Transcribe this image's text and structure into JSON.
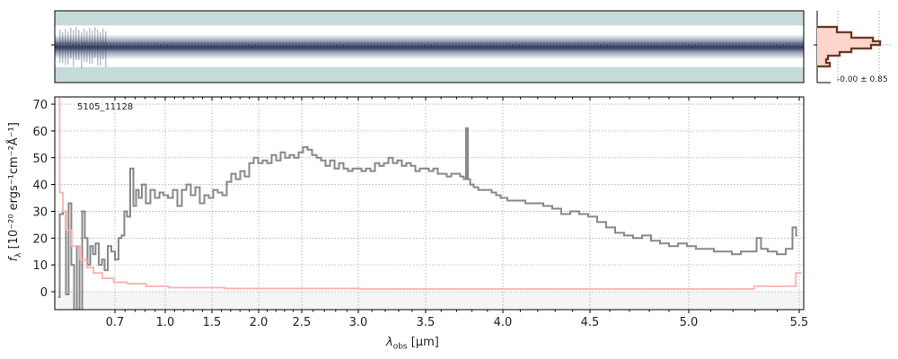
{
  "chart_data": {
    "type": "line",
    "object_label": "5105_11128",
    "xlabel_symbol": "λ",
    "xlabel_sub": "obs",
    "xlabel_unit": " [μm]",
    "ylabel_main": "f",
    "ylabel_sub": "λ",
    "ylabel_unit": " [10⁻²⁰ ergs⁻¹cm⁻²Å⁻¹]",
    "xticks": [
      0.7,
      1.0,
      1.5,
      2.0,
      2.5,
      3.0,
      3.5,
      4.0,
      4.5,
      5.0,
      5.5
    ],
    "xtick_labels": [
      "0.7",
      "1.0",
      "1.5",
      "2.0",
      "2.5",
      "3.0",
      "3.5",
      "4.0",
      "4.5",
      "5.0",
      "5.5"
    ],
    "xlim": [
      0.34,
      5.52
    ],
    "yticks": [
      0,
      10,
      20,
      30,
      40,
      50,
      60,
      70
    ],
    "ytick_labels": [
      "0",
      "10",
      "20",
      "30",
      "40",
      "50",
      "60",
      "70"
    ],
    "ylim": [
      -6.7,
      72.7
    ],
    "grid": true,
    "hist_label": "-0.00 ± 0.85",
    "series": [
      {
        "name": "flux",
        "color": "#888888",
        "x": [
          0.361,
          0.378,
          0.399,
          0.415,
          0.431,
          0.447,
          0.464,
          0.48,
          0.496,
          0.512,
          0.528,
          0.544,
          0.56,
          0.576,
          0.592,
          0.614,
          0.63,
          0.646,
          0.668,
          0.689,
          0.711,
          0.732,
          0.748,
          0.764,
          0.78,
          0.802,
          0.818,
          0.834,
          0.85,
          0.871,
          0.898,
          0.925,
          0.952,
          0.979,
          1.0,
          1.058,
          1.106,
          1.154,
          1.202,
          1.25,
          1.298,
          1.346,
          1.394,
          1.442,
          1.49,
          1.538,
          1.587,
          1.635,
          1.683,
          1.731,
          1.779,
          1.827,
          1.875,
          1.923,
          1.971,
          2.021,
          2.073,
          2.125,
          2.177,
          2.229,
          2.281,
          2.333,
          2.385,
          2.438,
          2.49,
          2.532,
          2.571,
          2.611,
          2.651,
          2.69,
          2.73,
          2.77,
          2.81,
          2.849,
          2.889,
          2.929,
          2.968,
          3.007,
          3.04,
          3.073,
          3.107,
          3.14,
          3.173,
          3.207,
          3.24,
          3.273,
          3.307,
          3.34,
          3.373,
          3.407,
          3.44,
          3.473,
          3.506,
          3.535,
          3.564,
          3.593,
          3.622,
          3.651,
          3.68,
          3.709,
          3.738,
          3.756,
          3.767,
          3.779,
          3.797,
          3.826,
          3.855,
          3.884,
          3.913,
          3.942,
          3.971,
          4.0,
          4.052,
          4.103,
          4.155,
          4.206,
          4.258,
          4.309,
          4.361,
          4.412,
          4.464,
          4.514,
          4.559,
          4.605,
          4.65,
          4.695,
          4.741,
          4.786,
          4.832,
          4.877,
          4.923,
          4.968,
          5.012,
          5.053,
          5.093,
          5.134,
          5.175,
          5.215,
          5.256,
          5.297,
          5.317,
          5.337,
          5.378,
          5.419,
          5.459,
          5.48,
          5.492
        ],
        "y": [
          -2,
          29,
          30,
          -1,
          33,
          10,
          -10,
          17,
          -10,
          30,
          20,
          10,
          17,
          14,
          18,
          10,
          12,
          8,
          17,
          15,
          12,
          20,
          21,
          30,
          28,
          46,
          32,
          38,
          35,
          40,
          33,
          38,
          35,
          37,
          36,
          35,
          38,
          32,
          38,
          40,
          36,
          39,
          33,
          36,
          35,
          38,
          37,
          36,
          41,
          44,
          42,
          45,
          43,
          48,
          50,
          48,
          49,
          48,
          51,
          49,
          52,
          50,
          51,
          50,
          52,
          54,
          53,
          51,
          50,
          49,
          47,
          49,
          46,
          48,
          46,
          45,
          46,
          46,
          45,
          46,
          45,
          48,
          47,
          48,
          50,
          48,
          49,
          47,
          48,
          47,
          45,
          46,
          46,
          45,
          46,
          44,
          44,
          43,
          44,
          44,
          43,
          42,
          61,
          42,
          40,
          39,
          38,
          38,
          38,
          37,
          36,
          35,
          34,
          34,
          33,
          33,
          32,
          31,
          29,
          30,
          29,
          28,
          26,
          24,
          22,
          21,
          20,
          21,
          19,
          18,
          17,
          18,
          17,
          16,
          16,
          15,
          15,
          14,
          15,
          15,
          20,
          16,
          15,
          14,
          16,
          24,
          21
        ]
      },
      {
        "name": "error",
        "color": "#ffb0b0",
        "x": [
          0.361,
          0.378,
          0.399,
          0.42,
          0.464,
          0.517,
          0.544,
          0.598,
          0.652,
          0.732,
          0.818,
          0.952,
          1.154,
          2.125,
          3.651,
          5.134,
          5.459,
          5.51
        ],
        "y": [
          72,
          37,
          30,
          23,
          17,
          12,
          9,
          7,
          5,
          3.5,
          3,
          2,
          1.5,
          1.2,
          1.0,
          1.0,
          2,
          7
        ]
      }
    ]
  }
}
